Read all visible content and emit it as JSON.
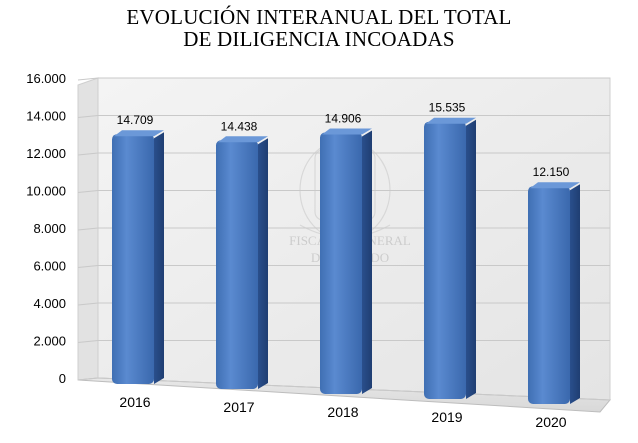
{
  "chart_data": {
    "type": "bar",
    "title_line1": "EVOLUCIÓN INTERANUAL DEL TOTAL",
    "title_line2": "DE DILIGENCIA INCOADAS",
    "categories": [
      "2016",
      "2017",
      "2018",
      "2019",
      "2020"
    ],
    "values": [
      14709,
      14438,
      14906,
      15535,
      12150
    ],
    "value_labels": [
      "14.709",
      "14.438",
      "14.906",
      "15.535",
      "12.150"
    ],
    "yticks": [
      "0",
      "2.000",
      "4.000",
      "6.000",
      "8.000",
      "10.000",
      "12.000",
      "14.000",
      "16.000"
    ],
    "ylim": [
      0,
      16000
    ],
    "grid": true,
    "legend": "none",
    "bar_color": "#4f7fc4"
  },
  "watermark": {
    "line1": "FISCALÍA GENERAL",
    "line2": "DEL ESTADO"
  }
}
